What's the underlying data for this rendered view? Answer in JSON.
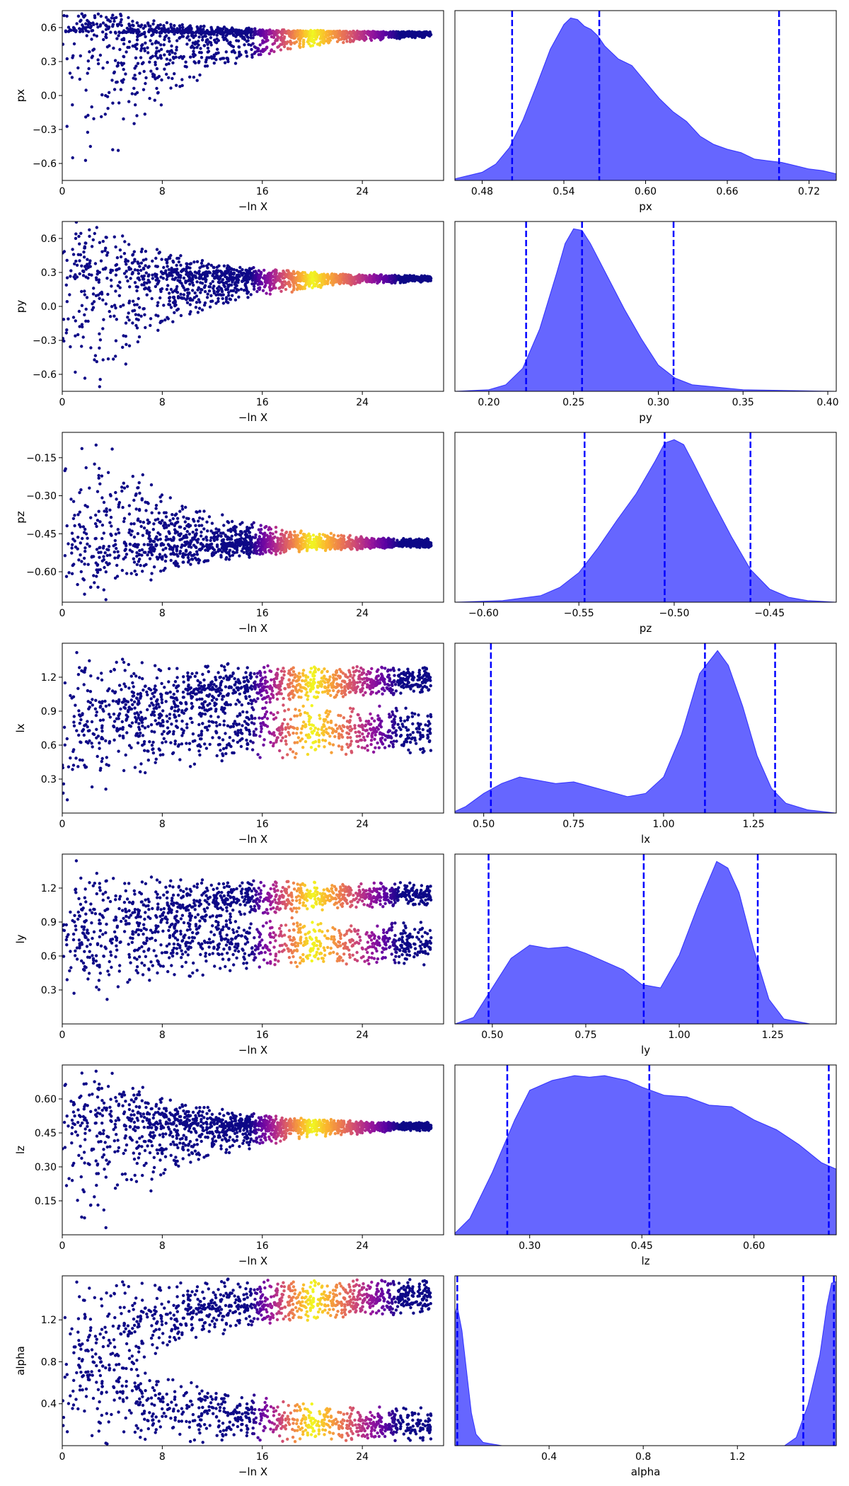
{
  "chart_data": {
    "type": "trace-plot",
    "x_axis_label": "−ln X",
    "dot_colormap": [
      "#0d0887",
      "#5b02a3",
      "#9a179b",
      "#cb4678",
      "#eb7852",
      "#fbb32f",
      "#f0f921"
    ],
    "density_color": "#0000ff",
    "quantile_line_color": "#0000ff",
    "params": [
      {
        "name": "px",
        "trace": {
          "xlim": [
            0,
            30.5
          ],
          "xticks": [
            0,
            8,
            16,
            24
          ],
          "ylim": [
            -0.75,
            0.75
          ],
          "yticks": [
            -0.6,
            -0.3,
            0.0,
            0.3,
            0.6
          ],
          "ytick_labels": [
            "−0.6",
            "−0.3",
            "0.0",
            "0.3",
            "0.6"
          ],
          "converge": 0.55,
          "width": 0.28,
          "upper_bound": 0.75,
          "lower_bound": -0.75,
          "split": null
        },
        "density": {
          "xlim": [
            0.46,
            0.74
          ],
          "xticks": [
            0.48,
            0.54,
            0.6,
            0.66,
            0.72
          ],
          "xtick_labels": [
            "0.48",
            "0.54",
            "0.60",
            "0.66",
            "0.72"
          ],
          "quantiles": [
            0.502,
            0.566,
            0.698
          ],
          "curve": [
            [
              0.46,
              0.01
            ],
            [
              0.48,
              0.05
            ],
            [
              0.49,
              0.1
            ],
            [
              0.5,
              0.2
            ],
            [
              0.51,
              0.37
            ],
            [
              0.52,
              0.58
            ],
            [
              0.53,
              0.8
            ],
            [
              0.54,
              0.95
            ],
            [
              0.545,
              0.99
            ],
            [
              0.55,
              0.98
            ],
            [
              0.555,
              0.94
            ],
            [
              0.56,
              0.92
            ],
            [
              0.565,
              0.88
            ],
            [
              0.57,
              0.82
            ],
            [
              0.58,
              0.74
            ],
            [
              0.59,
              0.7
            ],
            [
              0.6,
              0.6
            ],
            [
              0.61,
              0.5
            ],
            [
              0.62,
              0.42
            ],
            [
              0.63,
              0.36
            ],
            [
              0.64,
              0.27
            ],
            [
              0.65,
              0.22
            ],
            [
              0.66,
              0.19
            ],
            [
              0.67,
              0.17
            ],
            [
              0.68,
              0.13
            ],
            [
              0.69,
              0.12
            ],
            [
              0.7,
              0.11
            ],
            [
              0.71,
              0.09
            ],
            [
              0.72,
              0.07
            ],
            [
              0.73,
              0.06
            ],
            [
              0.74,
              0.04
            ]
          ]
        }
      },
      {
        "name": "py",
        "trace": {
          "xlim": [
            0,
            30.5
          ],
          "xticks": [
            0,
            8,
            16,
            24
          ],
          "ylim": [
            -0.75,
            0.75
          ],
          "yticks": [
            -0.6,
            -0.3,
            0.0,
            0.3,
            0.6
          ],
          "ytick_labels": [
            "−0.6",
            "−0.3",
            "0.0",
            "0.3",
            "0.6"
          ],
          "converge": 0.25,
          "width": 0.35,
          "upper_bound": 0.75,
          "lower_bound": -0.75,
          "split": null
        },
        "density": {
          "xlim": [
            0.18,
            0.405
          ],
          "xticks": [
            0.2,
            0.25,
            0.3,
            0.35,
            0.4
          ],
          "xtick_labels": [
            "0.20",
            "0.25",
            "0.30",
            "0.35",
            "0.40"
          ],
          "quantiles": [
            0.222,
            0.255,
            0.309
          ],
          "curve": [
            [
              0.18,
              0.0
            ],
            [
              0.2,
              0.01
            ],
            [
              0.21,
              0.04
            ],
            [
              0.22,
              0.14
            ],
            [
              0.23,
              0.38
            ],
            [
              0.24,
              0.72
            ],
            [
              0.245,
              0.9
            ],
            [
              0.25,
              0.99
            ],
            [
              0.255,
              0.98
            ],
            [
              0.26,
              0.9
            ],
            [
              0.27,
              0.7
            ],
            [
              0.28,
              0.5
            ],
            [
              0.29,
              0.32
            ],
            [
              0.3,
              0.16
            ],
            [
              0.31,
              0.08
            ],
            [
              0.32,
              0.04
            ],
            [
              0.33,
              0.03
            ],
            [
              0.35,
              0.01
            ],
            [
              0.405,
              0.0
            ]
          ]
        }
      },
      {
        "name": "pz",
        "trace": {
          "xlim": [
            0,
            30.5
          ],
          "xticks": [
            0,
            8,
            16,
            24
          ],
          "ylim": [
            -0.72,
            -0.05
          ],
          "yticks": [
            -0.6,
            -0.45,
            -0.3,
            -0.15
          ],
          "ytick_labels": [
            "−0.60",
            "−0.45",
            "−0.30",
            "−0.15"
          ],
          "converge": -0.49,
          "width": 0.2,
          "upper_bound": -0.05,
          "lower_bound": -0.72,
          "split": null
        },
        "density": {
          "xlim": [
            -0.615,
            -0.415
          ],
          "xticks": [
            -0.6,
            -0.55,
            -0.5,
            -0.45
          ],
          "xtick_labels": [
            "−0.60",
            "−0.55",
            "−0.50",
            "−0.45"
          ],
          "quantiles": [
            -0.547,
            -0.505,
            -0.46
          ],
          "curve": [
            [
              -0.615,
              0.0
            ],
            [
              -0.59,
              0.01
            ],
            [
              -0.57,
              0.04
            ],
            [
              -0.56,
              0.09
            ],
            [
              -0.55,
              0.18
            ],
            [
              -0.54,
              0.33
            ],
            [
              -0.53,
              0.5
            ],
            [
              -0.52,
              0.66
            ],
            [
              -0.51,
              0.86
            ],
            [
              -0.505,
              0.97
            ],
            [
              -0.5,
              0.99
            ],
            [
              -0.495,
              0.96
            ],
            [
              -0.49,
              0.85
            ],
            [
              -0.48,
              0.62
            ],
            [
              -0.47,
              0.4
            ],
            [
              -0.46,
              0.2
            ],
            [
              -0.45,
              0.08
            ],
            [
              -0.44,
              0.03
            ],
            [
              -0.43,
              0.01
            ],
            [
              -0.415,
              0.0
            ]
          ]
        }
      },
      {
        "name": "lx",
        "trace": {
          "xlim": [
            0,
            30.5
          ],
          "xticks": [
            0,
            8,
            16,
            24
          ],
          "ylim": [
            0.0,
            1.5
          ],
          "yticks": [
            0.3,
            0.6,
            0.9,
            1.2
          ],
          "ytick_labels": [
            "0.3",
            "0.6",
            "0.9",
            "1.2"
          ],
          "converge": 1.12,
          "width": 0.8,
          "upper_bound": 1.5,
          "lower_bound": 0.0,
          "split": {
            "lo": [
              0.5,
              0.95
            ],
            "hi": [
              1.05,
              1.3
            ]
          }
        },
        "density": {
          "xlim": [
            0.42,
            1.48
          ],
          "xticks": [
            0.5,
            0.75,
            1.0,
            1.25
          ],
          "xtick_labels": [
            "0.50",
            "0.75",
            "1.00",
            "1.25"
          ],
          "quantiles": [
            0.52,
            1.115,
            1.31
          ],
          "curve": [
            [
              0.42,
              0.01
            ],
            [
              0.45,
              0.04
            ],
            [
              0.5,
              0.12
            ],
            [
              0.55,
              0.18
            ],
            [
              0.6,
              0.22
            ],
            [
              0.65,
              0.2
            ],
            [
              0.7,
              0.18
            ],
            [
              0.75,
              0.19
            ],
            [
              0.8,
              0.16
            ],
            [
              0.85,
              0.13
            ],
            [
              0.9,
              0.1
            ],
            [
              0.95,
              0.12
            ],
            [
              1.0,
              0.22
            ],
            [
              1.05,
              0.48
            ],
            [
              1.1,
              0.85
            ],
            [
              1.15,
              0.99
            ],
            [
              1.18,
              0.9
            ],
            [
              1.22,
              0.65
            ],
            [
              1.26,
              0.35
            ],
            [
              1.3,
              0.15
            ],
            [
              1.34,
              0.06
            ],
            [
              1.4,
              0.02
            ],
            [
              1.48,
              0.0
            ]
          ]
        }
      },
      {
        "name": "ly",
        "trace": {
          "xlim": [
            0,
            30.5
          ],
          "xticks": [
            0,
            8,
            16,
            24
          ],
          "ylim": [
            0.0,
            1.5
          ],
          "yticks": [
            0.3,
            0.6,
            0.9,
            1.2
          ],
          "ytick_labels": [
            "0.3",
            "0.6",
            "0.9",
            "1.2"
          ],
          "converge": 1.05,
          "width": 0.8,
          "upper_bound": 1.5,
          "lower_bound": 0.0,
          "split": {
            "lo": [
              0.52,
              0.9
            ],
            "hi": [
              1.05,
              1.25
            ]
          }
        },
        "density": {
          "xlim": [
            0.4,
            1.42
          ],
          "xticks": [
            0.5,
            0.75,
            1.0,
            1.25
          ],
          "xtick_labels": [
            "0.50",
            "0.75",
            "1.00",
            "1.25"
          ],
          "quantiles": [
            0.49,
            0.905,
            1.21
          ],
          "curve": [
            [
              0.4,
              0.0
            ],
            [
              0.45,
              0.04
            ],
            [
              0.5,
              0.22
            ],
            [
              0.55,
              0.4
            ],
            [
              0.6,
              0.48
            ],
            [
              0.65,
              0.46
            ],
            [
              0.7,
              0.47
            ],
            [
              0.75,
              0.43
            ],
            [
              0.8,
              0.38
            ],
            [
              0.85,
              0.33
            ],
            [
              0.9,
              0.24
            ],
            [
              0.95,
              0.22
            ],
            [
              1.0,
              0.42
            ],
            [
              1.05,
              0.72
            ],
            [
              1.1,
              0.99
            ],
            [
              1.13,
              0.95
            ],
            [
              1.16,
              0.8
            ],
            [
              1.2,
              0.45
            ],
            [
              1.24,
              0.15
            ],
            [
              1.28,
              0.03
            ],
            [
              1.35,
              0.0
            ],
            [
              1.42,
              0.0
            ]
          ]
        }
      },
      {
        "name": "lz",
        "trace": {
          "xlim": [
            0,
            30.5
          ],
          "xticks": [
            0,
            8,
            16,
            24
          ],
          "ylim": [
            0.0,
            0.75
          ],
          "yticks": [
            0.15,
            0.3,
            0.45,
            0.6
          ],
          "ytick_labels": [
            "0.15",
            "0.30",
            "0.45",
            "0.60"
          ],
          "converge": 0.48,
          "width": 0.55,
          "upper_bound": 0.75,
          "lower_bound": 0.0,
          "split": null
        },
        "density": {
          "xlim": [
            0.2,
            0.71
          ],
          "xticks": [
            0.3,
            0.45,
            0.6
          ],
          "xtick_labels": [
            "0.30",
            "0.45",
            "0.60"
          ],
          "quantiles": [
            0.27,
            0.46,
            0.7
          ],
          "curve": [
            [
              0.2,
              0.01
            ],
            [
              0.22,
              0.1
            ],
            [
              0.25,
              0.38
            ],
            [
              0.28,
              0.7
            ],
            [
              0.3,
              0.88
            ],
            [
              0.33,
              0.94
            ],
            [
              0.36,
              0.97
            ],
            [
              0.38,
              0.96
            ],
            [
              0.4,
              0.97
            ],
            [
              0.43,
              0.94
            ],
            [
              0.45,
              0.9
            ],
            [
              0.48,
              0.85
            ],
            [
              0.51,
              0.84
            ],
            [
              0.54,
              0.79
            ],
            [
              0.57,
              0.78
            ],
            [
              0.6,
              0.7
            ],
            [
              0.63,
              0.64
            ],
            [
              0.66,
              0.55
            ],
            [
              0.69,
              0.44
            ],
            [
              0.71,
              0.4
            ]
          ]
        }
      },
      {
        "name": "alpha",
        "trace": {
          "xlim": [
            0,
            30.5
          ],
          "xticks": [
            0,
            8,
            16,
            24
          ],
          "ylim": [
            0.0,
            1.62
          ],
          "yticks": [
            0.4,
            0.8,
            1.2
          ],
          "ytick_labels": [
            "0.4",
            "0.8",
            "1.2"
          ],
          "converge": null,
          "width": 1.0,
          "upper_bound": 1.62,
          "lower_bound": 0.0,
          "split": {
            "lo": [
              0.02,
              0.35
            ],
            "hi": [
              1.25,
              1.6
            ]
          }
        },
        "density": {
          "xlim": [
            0.0,
            1.62
          ],
          "xticks": [
            0.4,
            0.8,
            1.2
          ],
          "xtick_labels": [
            "0.4",
            "0.8",
            "1.2"
          ],
          "quantiles": [
            0.01,
            1.48,
            1.61
          ],
          "curve": [
            [
              0.0,
              0.8
            ],
            [
              0.01,
              0.85
            ],
            [
              0.03,
              0.7
            ],
            [
              0.05,
              0.45
            ],
            [
              0.07,
              0.2
            ],
            [
              0.09,
              0.07
            ],
            [
              0.12,
              0.02
            ],
            [
              0.2,
              0.0
            ],
            [
              1.4,
              0.0
            ],
            [
              1.45,
              0.05
            ],
            [
              1.5,
              0.25
            ],
            [
              1.55,
              0.55
            ],
            [
              1.58,
              0.85
            ],
            [
              1.6,
              0.99
            ],
            [
              1.62,
              1.0
            ]
          ]
        }
      }
    ]
  }
}
